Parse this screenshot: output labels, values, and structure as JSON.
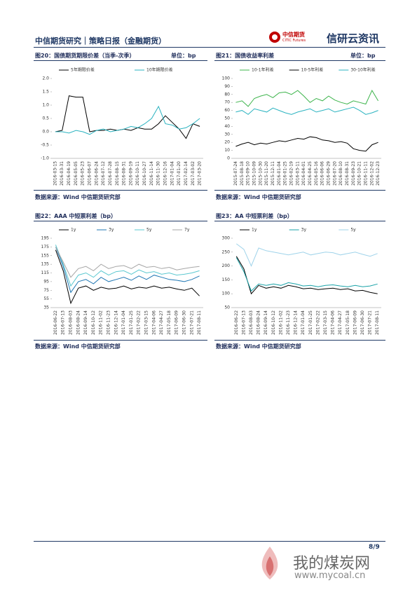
{
  "header": {
    "title": "中信期货研究｜策略日报（金融期货）",
    "logo_cn": "中信期货",
    "logo_en": "CITIC Futures",
    "brand": "信研云资讯"
  },
  "page": "8/9",
  "watermark": {
    "cn": "我的煤炭网",
    "url": "www.mycoal.cn"
  },
  "chart_data": [
    {
      "type": "line",
      "title": "图20：国债期货期限价差（当季-次季）",
      "unit": "单位：bp",
      "source": "数据来源：Wind  中信期货研究部",
      "categories": [
        "2016-03-15",
        "2016-03-31",
        "2016-04-19",
        "2016-05-05",
        "2016-05-23",
        "2016-06-07",
        "2016-06-24",
        "2016-07-12",
        "2016-07-28",
        "2016-08-15",
        "2016-08-31",
        "2016-09-19",
        "2016-10-11",
        "2016-10-27",
        "2016-11-14",
        "2016-11-30",
        "2016-12-16",
        "2017-01-04",
        "2017-01-20",
        "2017-02-14",
        "2017-03-02",
        "2017-03-20"
      ],
      "series": [
        {
          "name": "5年期限价差",
          "color": "#000000",
          "values": [
            0.0,
            0.05,
            1.35,
            1.3,
            1.3,
            0.0,
            0.05,
            0.05,
            0.1,
            0.05,
            0.1,
            0.05,
            0.15,
            0.1,
            0.1,
            0.3,
            0.6,
            0.35,
            0.1,
            -0.25,
            0.3,
            0.2
          ]
        },
        {
          "name": "10年期限价差",
          "color": "#2bb3c0",
          "values": [
            0.0,
            0.0,
            -0.05,
            0.05,
            0.0,
            -0.1,
            0.05,
            0.1,
            0.0,
            0.05,
            0.1,
            0.2,
            0.15,
            0.3,
            0.5,
            0.95,
            0.3,
            0.25,
            0.1,
            0.15,
            0.3,
            0.5
          ]
        }
      ],
      "ylim": [
        -1.0,
        2.0
      ],
      "yticks": [
        {
          "value": -1.0,
          "label": "-1.0"
        },
        -0.5,
        {
          "value": 0.0,
          "label": "0.0"
        },
        0.5,
        {
          "value": 1.0,
          "label": "1.0"
        },
        1.5,
        {
          "value": 2.0,
          "label": "2.0"
        }
      ]
    },
    {
      "type": "line",
      "title": "图21：国债收益率利差",
      "unit": "单位：bp",
      "source": "数据来源：Wind  中信期货研究部",
      "categories": [
        "2015-07-24",
        "2015-08-18",
        "2015-09-10",
        "2015-10-09",
        "2015-10-30",
        "2015-11-20",
        "2015-12-11",
        "2016-01-04",
        "2016-01-25",
        "2016-02-19",
        "2016-03-11",
        "2016-04-01",
        "2016-04-25",
        "2016-05-16",
        "2016-06-06",
        "2016-06-29",
        "2016-07-20",
        "2016-08-10",
        "2016-08-31",
        "2016-09-23",
        "2016-10-21",
        "2016-11-11",
        "2016-12-02",
        "2016-12-23"
      ],
      "series": [
        {
          "name": "10-1年利差",
          "color": "#3cb44b",
          "values": [
            70,
            72,
            65,
            75,
            78,
            80,
            76,
            82,
            83,
            80,
            85,
            78,
            70,
            75,
            72,
            78,
            73,
            70,
            68,
            72,
            70,
            68,
            85,
            72
          ]
        },
        {
          "name": "10-5年利差",
          "color": "#000000",
          "values": [
            15,
            18,
            20,
            17,
            19,
            18,
            20,
            22,
            21,
            23,
            25,
            24,
            27,
            26,
            23,
            22,
            20,
            21,
            19,
            12,
            10,
            9,
            17,
            20
          ]
        },
        {
          "name": "30-10年利差",
          "color": "#2bb3c0",
          "values": [
            58,
            60,
            55,
            62,
            60,
            58,
            63,
            60,
            57,
            55,
            58,
            60,
            62,
            58,
            60,
            62,
            58,
            60,
            62,
            64,
            60,
            55,
            57,
            60
          ]
        }
      ],
      "ylim": [
        0,
        100
      ],
      "yticks": [
        0,
        10,
        20,
        30,
        40,
        50,
        60,
        70,
        80,
        90,
        100
      ]
    },
    {
      "type": "line",
      "title": "图22：AAA 中短票利差（bp）",
      "source": "数据来源：Wind  中信期货研究部",
      "categories": [
        "2016-06-22",
        "2016-07-13",
        "2016-08-03",
        "2016-08-24",
        "2016-09-14",
        "2016-10-12",
        "2016-11-02",
        "2016-11-23",
        "2016-12-14",
        "2017-01-04",
        "2017-01-25",
        "2017-02-22",
        "2017-03-15",
        "2017-04-06",
        "2017-04-27",
        "2017-05-18",
        "2017-06-09",
        "2017-06-30",
        "2017-07-21",
        "2017-08-11"
      ],
      "series": [
        {
          "name": "1y",
          "color": "#000000",
          "values": [
            168,
            120,
            45,
            80,
            85,
            75,
            82,
            78,
            80,
            85,
            78,
            82,
            80,
            85,
            80,
            82,
            78,
            75,
            80,
            62
          ]
        },
        {
          "name": "3y",
          "color": "#1f77b4",
          "values": [
            175,
            130,
            70,
            95,
            100,
            90,
            105,
            95,
            100,
            105,
            98,
            108,
            100,
            110,
            105,
            100,
            98,
            95,
            100,
            108
          ]
        },
        {
          "name": "5y",
          "color": "#5bc8d0",
          "values": [
            180,
            135,
            85,
            110,
            115,
            105,
            120,
            110,
            118,
            120,
            112,
            122,
            115,
            118,
            112,
            115,
            110,
            112,
            115,
            120
          ]
        },
        {
          "name": "7y",
          "color": "#a6a6a6",
          "values": [
            175,
            140,
            105,
            125,
            130,
            120,
            135,
            125,
            130,
            132,
            125,
            135,
            128,
            130,
            125,
            128,
            122,
            125,
            128,
            130
          ]
        }
      ],
      "ylim": [
        35,
        195
      ],
      "yticks": [
        35,
        55,
        75,
        95,
        115,
        135,
        155,
        175,
        195
      ]
    },
    {
      "type": "line",
      "title": "图23：AA 中短票利差（bp）",
      "source": "数据来源：Wind  中信期货研究部",
      "categories": [
        "2016-06-22",
        "2016-07-13",
        "2016-08-03",
        "2016-08-24",
        "2016-09-14",
        "2016-10-12",
        "2016-11-02",
        "2016-11-23",
        "2016-12-14",
        "2017-01-04",
        "2017-01-25",
        "2017-02-22",
        "2017-03-15",
        "2017-04-06",
        "2017-04-27",
        "2017-05-18",
        "2017-06-09",
        "2017-06-30",
        "2017-07-21",
        "2017-08-11"
      ],
      "series": [
        {
          "name": "1y",
          "color": "#000000",
          "values": [
            235,
            190,
            100,
            130,
            120,
            125,
            120,
            130,
            125,
            118,
            120,
            115,
            118,
            120,
            115,
            118,
            110,
            112,
            105,
            100
          ]
        },
        {
          "name": "3y",
          "color": "#1aa3a8",
          "values": [
            230,
            180,
            110,
            135,
            130,
            135,
            130,
            140,
            135,
            128,
            130,
            125,
            130,
            132,
            128,
            125,
            130,
            125,
            128,
            135
          ]
        },
        {
          "name": "5y",
          "color": "#9fd3ea",
          "values": [
            280,
            260,
            200,
            265,
            255,
            250,
            245,
            240,
            245,
            250,
            240,
            245,
            250,
            248,
            240,
            245,
            250,
            242,
            235,
            245
          ]
        }
      ],
      "ylim": [
        50,
        300
      ],
      "yticks": [
        50,
        100,
        150,
        200,
        250,
        300
      ]
    }
  ]
}
